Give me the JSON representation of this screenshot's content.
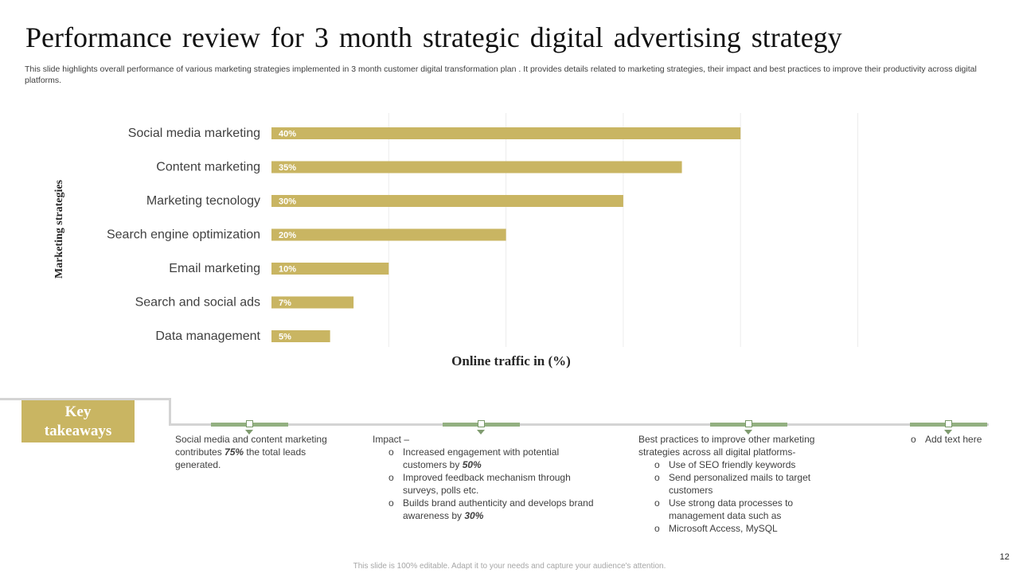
{
  "title": "Performance review for 3 month strategic digital advertising strategy",
  "subtitle": "This slide highlights overall performance of various marketing strategies implemented in 3 month customer digital transformation plan . It provides details related to marketing strategies, their impact and best practices to improve their productivity across digital platforms.",
  "chart_data": {
    "type": "bar",
    "orientation": "horizontal",
    "title": "",
    "xlabel": "Online traffic in (%)",
    "ylabel": "Marketing strategies",
    "categories": [
      "Social media marketing",
      "Content marketing",
      "Marketing tecnology",
      "Search engine optimization",
      "Email marketing",
      "Search and social ads",
      "Data management"
    ],
    "values": [
      40,
      35,
      30,
      20,
      10,
      7,
      5
    ],
    "data_labels": [
      "40%",
      "35%",
      "30%",
      "20%",
      "10%",
      "7%",
      "5%"
    ],
    "xlim": [
      0,
      50
    ],
    "gridlines": [
      10,
      20,
      30,
      40,
      50
    ],
    "grid": true,
    "bar_color": "#c9b562",
    "label_color": "#ffffff"
  },
  "takeaways": {
    "heading_line1": "Key",
    "heading_line2": "takeaways",
    "col1": {
      "text_a": "Social media and content marketing contributes ",
      "emph": "75%",
      "text_b": " the total leads generated."
    },
    "col2": {
      "intro": "Impact –",
      "b1_text": "Increased engagement with potential customers by ",
      "b1_emph": "50%",
      "b2_text": "Improved feedback mechanism through surveys, polls etc.",
      "b3_text": "Builds brand authenticity  and develops brand awareness by ",
      "b3_emph": "30%"
    },
    "col3": {
      "intro": "Best practices to improve other marketing strategies across all digital platforms-",
      "items": [
        "Use of SEO friendly keywords",
        "Send personalized mails to target customers",
        "Use strong data processes to management data such as",
        "Microsoft Access, MySQL"
      ]
    },
    "col4": {
      "item": "Add text here"
    },
    "bullet_glyph": "o"
  },
  "colors": {
    "accent": "#c9b562",
    "timeline_green": "#93b081",
    "timeline_gray": "#d4d4d4"
  },
  "footer": "This slide is 100% editable. Adapt it to your needs and capture your audience's attention.",
  "page_number": "12"
}
